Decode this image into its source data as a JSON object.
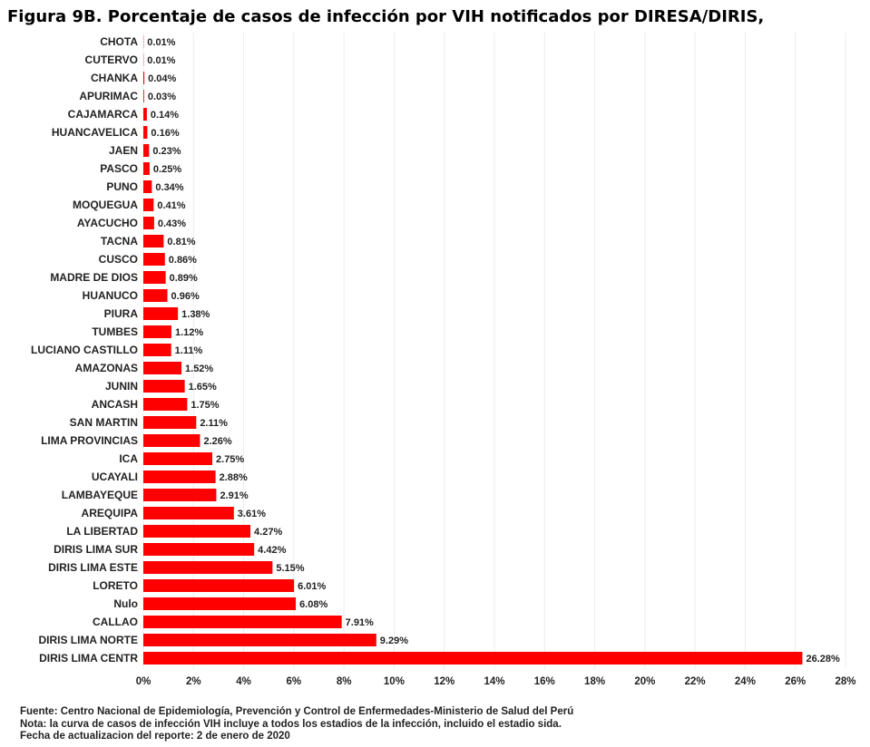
{
  "chart_data": {
    "type": "bar",
    "orientation": "horizontal",
    "title": "Figura 9B. Porcentaje de casos de infección por VIH notificados por DIRESA/DIRIS,",
    "categories": [
      "CHOTA",
      "CUTERVO",
      "CHANKA",
      "APURIMAC",
      "CAJAMARCA",
      "HUANCAVELICA",
      "JAEN",
      "PASCO",
      "PUNO",
      "MOQUEGUA",
      "AYACUCHO",
      "TACNA",
      "CUSCO",
      "MADRE DE DIOS",
      "HUANUCO",
      "PIURA",
      "TUMBES",
      "LUCIANO CASTILLO",
      "AMAZONAS",
      "JUNIN",
      "ANCASH",
      "SAN MARTIN",
      "LIMA PROVINCIAS",
      "ICA",
      "UCAYALI",
      "LAMBAYEQUE",
      "AREQUIPA",
      "LA LIBERTAD",
      "DIRIS LIMA SUR",
      "DIRIS LIMA ESTE",
      "LORETO",
      "Nulo",
      "CALLAO",
      "DIRIS LIMA NORTE",
      "DIRIS LIMA CENTR"
    ],
    "values": [
      0.01,
      0.01,
      0.04,
      0.03,
      0.14,
      0.16,
      0.23,
      0.25,
      0.34,
      0.41,
      0.43,
      0.81,
      0.86,
      0.89,
      0.96,
      1.38,
      1.12,
      1.11,
      1.52,
      1.65,
      1.75,
      2.11,
      2.26,
      2.75,
      2.88,
      2.91,
      3.61,
      4.27,
      4.42,
      5.15,
      6.01,
      6.08,
      7.91,
      9.29,
      26.28
    ],
    "data_labels": [
      "0.01%",
      "0.01%",
      "0.04%",
      "0.03%",
      "0.14%",
      "0.16%",
      "0.23%",
      "0.25%",
      "0.34%",
      "0.41%",
      "0.43%",
      "0.81%",
      "0.86%",
      "0.89%",
      "0.96%",
      "1.38%",
      "1.12%",
      "1.11%",
      "1.52%",
      "1.65%",
      "1.75%",
      "2.11%",
      "2.26%",
      "2.75%",
      "2.88%",
      "2.91%",
      "3.61%",
      "4.27%",
      "4.42%",
      "5.15%",
      "6.01%",
      "6.08%",
      "7.91%",
      "9.29%",
      "26.28%"
    ],
    "xlim": [
      0,
      28
    ],
    "x_ticks": [
      0,
      2,
      4,
      6,
      8,
      10,
      12,
      14,
      16,
      18,
      20,
      22,
      24,
      26,
      28
    ],
    "x_tick_labels": [
      "0%",
      "2%",
      "4%",
      "6%",
      "8%",
      "10%",
      "12%",
      "14%",
      "16%",
      "18%",
      "20%",
      "22%",
      "24%",
      "26%",
      "28%"
    ],
    "grid": true,
    "bar_color": "#ff0000",
    "grid_color": "#ececec",
    "xlabel": "",
    "ylabel": ""
  },
  "footer": {
    "source": "Fuente: Centro Nacional de Epidemiología, Prevención y Control de Enfermedades-Ministerio de Salud del Perú",
    "note": "Nota: la curva de casos de infección VIH incluye a todos los estadios de la infección, incluido el estadio sida.",
    "date": "Fecha de actualizacion del reporte:  2 de enero de 2020"
  }
}
